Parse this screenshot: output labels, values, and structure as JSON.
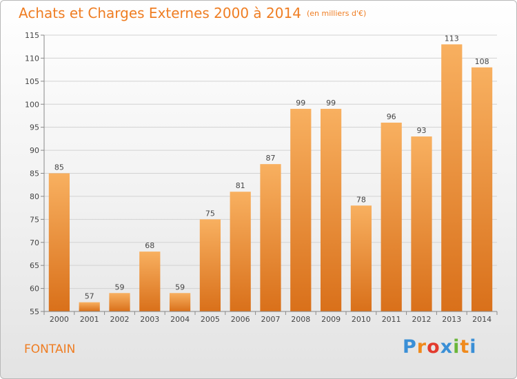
{
  "title": "Achats et Charges Externes 2000 à 2014",
  "subtitle": "(en milliers d'€)",
  "location": "FONTAIN",
  "logo_text": "Proxiti",
  "colors": {
    "accent": "#ef7d22",
    "bar_light": "#f8b060",
    "bar_dark": "#d9701a",
    "logo": [
      "#3a8fd6",
      "#f08a1c",
      "#e33b2e",
      "#3a8fd6",
      "#6ab63a",
      "#f08a1c",
      "#3a8fd6"
    ]
  },
  "chart_data": {
    "type": "bar",
    "title": "Achats et Charges Externes 2000 à 2014",
    "subtitle": "(en milliers d'€)",
    "categories": [
      "2000",
      "2001",
      "2002",
      "2003",
      "2004",
      "2005",
      "2006",
      "2007",
      "2008",
      "2009",
      "2010",
      "2011",
      "2012",
      "2013",
      "2014"
    ],
    "values": [
      85,
      57,
      59,
      68,
      59,
      75,
      81,
      87,
      99,
      99,
      78,
      96,
      93,
      113,
      108
    ],
    "ylim": [
      55,
      115
    ],
    "yticks": [
      55,
      60,
      65,
      70,
      75,
      80,
      85,
      90,
      95,
      100,
      105,
      110,
      115
    ],
    "grid": true,
    "xlabel": "",
    "ylabel": ""
  }
}
